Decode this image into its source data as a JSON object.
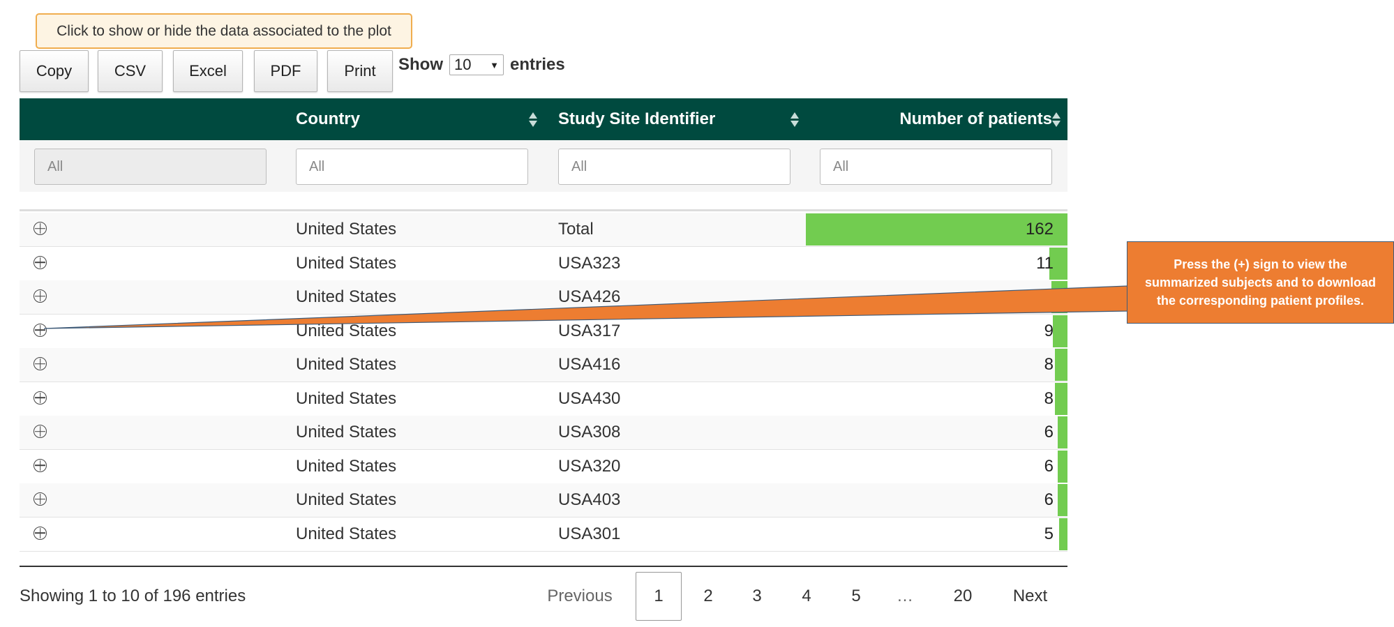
{
  "toolbar": {
    "toggle_label": "Click to show or hide the data associated to the plot",
    "buttons": [
      "Copy",
      "CSV",
      "Excel",
      "PDF",
      "Print"
    ],
    "show_label": "Show",
    "entries_label": "entries",
    "page_length": "10"
  },
  "table": {
    "columns": [
      "",
      "Country",
      "Study Site Identifier",
      "Number of patients"
    ],
    "filter_placeholder": "All",
    "rows": [
      {
        "country": "United States",
        "site": "Total",
        "patients": "162",
        "fraction": 1.0
      },
      {
        "country": "United States",
        "site": "USA323",
        "patients": "11",
        "fraction": 0.068
      },
      {
        "country": "United States",
        "site": "USA426",
        "patients": "10",
        "fraction": 0.062
      },
      {
        "country": "United States",
        "site": "USA317",
        "patients": "9",
        "fraction": 0.056
      },
      {
        "country": "United States",
        "site": "USA416",
        "patients": "8",
        "fraction": 0.049
      },
      {
        "country": "United States",
        "site": "USA430",
        "patients": "8",
        "fraction": 0.049
      },
      {
        "country": "United States",
        "site": "USA308",
        "patients": "6",
        "fraction": 0.037
      },
      {
        "country": "United States",
        "site": "USA320",
        "patients": "6",
        "fraction": 0.037
      },
      {
        "country": "United States",
        "site": "USA403",
        "patients": "6",
        "fraction": 0.037
      },
      {
        "country": "United States",
        "site": "USA301",
        "patients": "5",
        "fraction": 0.031
      }
    ],
    "bar_color": "#72cc50",
    "header_color": "#004a3f"
  },
  "footer": {
    "info": "Showing 1 to 10 of 196 entries",
    "previous": "Previous",
    "pages": [
      "1",
      "2",
      "3",
      "4",
      "5",
      "…",
      "20"
    ],
    "next": "Next"
  },
  "callout": {
    "lines": [
      "Press the (+) sign to view the",
      "summarized subjects and to download",
      "the corresponding patient profiles."
    ],
    "color": "#ed7d31"
  }
}
